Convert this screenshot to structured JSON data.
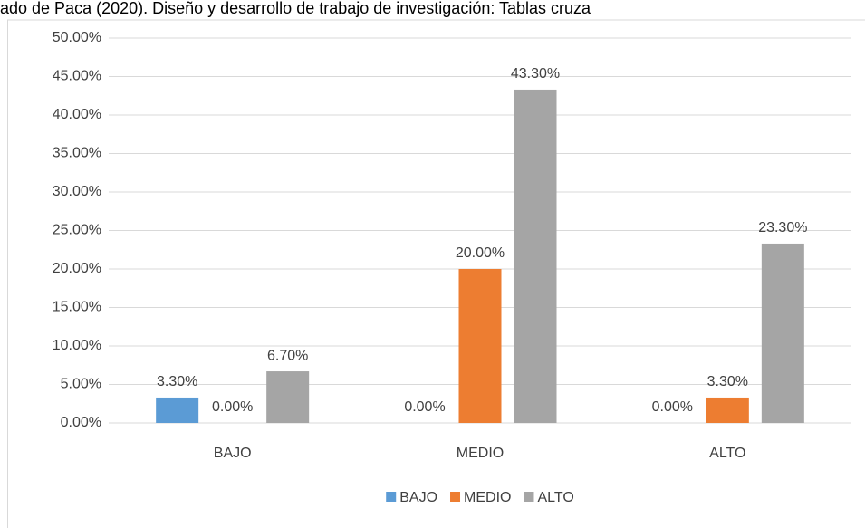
{
  "chart_data": {
    "type": "bar",
    "title": "ado de Paca (2020). Diseño y desarrollo de trabajo de investigación: Tablas cruza",
    "categories": [
      "BAJO",
      "MEDIO",
      "ALTO"
    ],
    "series": [
      {
        "name": "BAJO",
        "color": "#5b9bd5",
        "values": [
          3.3,
          0,
          0
        ],
        "value_labels": [
          "3.30%",
          "0.00%",
          "0.00%"
        ]
      },
      {
        "name": "MEDIO",
        "color": "#ed7d31",
        "values": [
          0,
          20,
          3.3
        ],
        "value_labels": [
          "0.00%",
          "20.00%",
          "3.30%"
        ]
      },
      {
        "name": "ALTO",
        "color": "#a5a5a5",
        "values": [
          6.7,
          43.3,
          23.3
        ],
        "value_labels": [
          "6.70%",
          "43.30%",
          "23.30%"
        ]
      }
    ],
    "ylim": [
      0,
      50
    ],
    "yticks": [
      {
        "value": 0,
        "label": "0.00%"
      },
      {
        "value": 5,
        "label": "5.00%"
      },
      {
        "value": 10,
        "label": "10.00%"
      },
      {
        "value": 15,
        "label": "15.00%"
      },
      {
        "value": 20,
        "label": "20.00%"
      },
      {
        "value": 25,
        "label": "25.00%"
      },
      {
        "value": 30,
        "label": "30.00%"
      },
      {
        "value": 35,
        "label": "35.00%"
      },
      {
        "value": 40,
        "label": "40.00%"
      },
      {
        "value": 45,
        "label": "45.00%"
      },
      {
        "value": 50,
        "label": "50.00%"
      }
    ],
    "grid": true,
    "legend": "bottom"
  }
}
